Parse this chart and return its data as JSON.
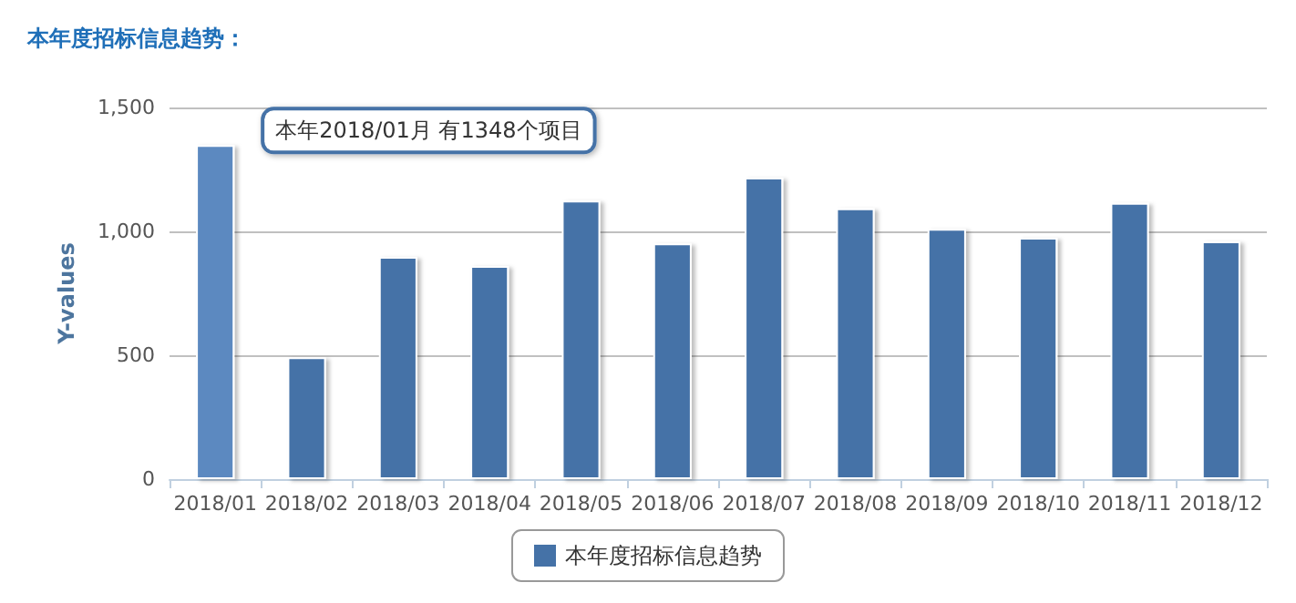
{
  "chart_data": {
    "type": "bar",
    "title": "本年度招标信息趋势：",
    "ylabel": "Y-values",
    "categories": [
      "2018/01",
      "2018/02",
      "2018/03",
      "2018/04",
      "2018/05",
      "2018/06",
      "2018/07",
      "2018/08",
      "2018/09",
      "2018/10",
      "2018/11",
      "2018/12"
    ],
    "series": [
      {
        "name": "本年度招标信息趋势",
        "color": "#4572a7",
        "colors": [
          "#5b89c0",
          "#4572a7",
          "#4572a7",
          "#4572a7",
          "#4572a7",
          "#4572a7",
          "#4572a7",
          "#4572a7",
          "#4572a7",
          "#4572a7",
          "#4572a7",
          "#4572a7"
        ],
        "values": [
          1348,
          492,
          897,
          860,
          1124,
          951,
          1217,
          1093,
          1010,
          974,
          1115,
          960
        ]
      }
    ],
    "ylim": [
      0,
      1500
    ],
    "yticks": [
      0,
      500,
      {
        "value": 1000,
        "label": "1,000"
      },
      {
        "value": 1500,
        "label": "1,500"
      }
    ],
    "grid": "y",
    "legend": "bottom",
    "annotations": [
      {
        "text": "本年2018/01月 有1348个项目",
        "x": "2018/01",
        "y": 1348
      }
    ]
  }
}
